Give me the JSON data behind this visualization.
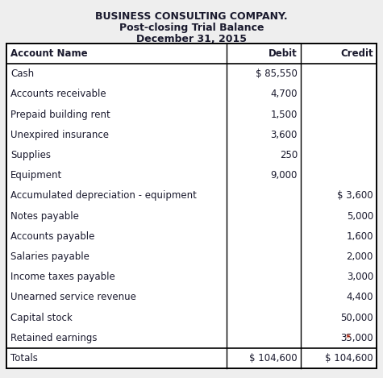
{
  "title1": "BUSINESS CONSULTING COMPANY.",
  "title2": "Post-closing Trial Balance",
  "title3": "December 31, 2015",
  "header": [
    "Account Name",
    "Debit",
    "Credit"
  ],
  "rows": [
    {
      "name": "Cash",
      "debit": "$ 85,550",
      "credit": ""
    },
    {
      "name": "Accounts receivable",
      "debit": "4,700",
      "credit": ""
    },
    {
      "name": "Prepaid building rent",
      "debit": "1,500",
      "credit": ""
    },
    {
      "name": "Unexpired insurance",
      "debit": "3,600",
      "credit": ""
    },
    {
      "name": "Supplies",
      "debit": "250",
      "credit": ""
    },
    {
      "name": "Equipment",
      "debit": "9,000",
      "credit": ""
    },
    {
      "name": "Accumulated depreciation - equipment",
      "debit": "",
      "credit": "$ 3,600"
    },
    {
      "name": "Notes payable",
      "debit": "",
      "credit": "5,000"
    },
    {
      "name": "Accounts payable",
      "debit": "",
      "credit": "1,600"
    },
    {
      "name": "Salaries payable",
      "debit": "",
      "credit": "2,000"
    },
    {
      "name": "Income taxes payable",
      "debit": "",
      "credit": "3,000"
    },
    {
      "name": "Unearned service revenue",
      "debit": "",
      "credit": "4,400"
    },
    {
      "name": "Capital stock",
      "debit": "",
      "credit": "50,000"
    },
    {
      "name": "Retained earnings",
      "debit": "",
      "credit": "*35,000"
    }
  ],
  "totals": [
    "Totals",
    "$ 104,600",
    "$ 104,600"
  ],
  "bg_color": "#eeeeee",
  "text_color": "#1a1a2e",
  "retained_star_color": "#cc2200",
  "font_size": 8.5,
  "title_font_size": 9.0,
  "col_split1": 0.595,
  "col_split2": 0.795
}
